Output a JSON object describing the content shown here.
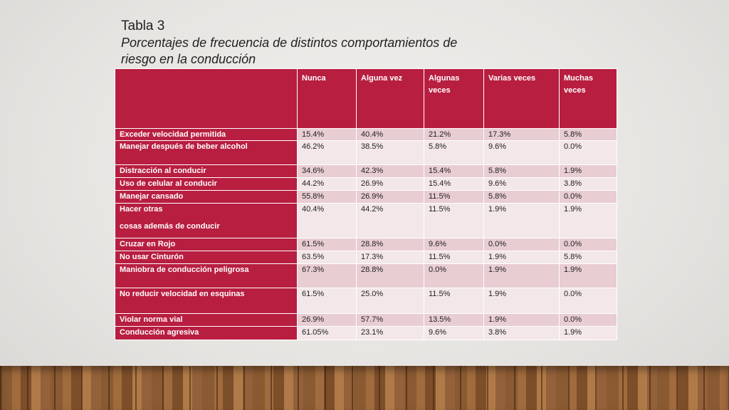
{
  "header": {
    "title": "Tabla 3",
    "subtitle": "Porcentajes de frecuencia de distintos comportamientos de riesgo en la conducción"
  },
  "table": {
    "columns": [
      "Nunca",
      "Alguna vez",
      "Algunas veces",
      "Varias veces",
      "Muchas veces"
    ],
    "rows": [
      {
        "label": "Exceder velocidad permitida",
        "values": [
          "15.4%",
          "40.4%",
          "21.2%",
          "17.3%",
          "5.8%"
        ]
      },
      {
        "label": "Manejar después  de beber alcohol",
        "values": [
          "46.2%",
          "38.5%",
          "5.8%",
          "9.6%",
          "0.0%"
        ]
      },
      {
        "label": "Distracción al conducir",
        "values": [
          "34.6%",
          "42.3%",
          "15.4%",
          "5.8%",
          "1.9%"
        ]
      },
      {
        "label": "Uso de celular al conducir",
        "values": [
          "44.2%",
          "26.9%",
          "15.4%",
          "9.6%",
          "3.8%"
        ]
      },
      {
        "label": "Manejar cansado",
        "values": [
          "55.8%",
          "26.9%",
          "11.5%",
          "5.8%",
          "0.0%"
        ]
      },
      {
        "label": "Hacer otras\n\ncosas además de conducir",
        "values": [
          "40.4%",
          "44.2%",
          "11.5%",
          "1.9%",
          "1.9%"
        ]
      },
      {
        "label": "Cruzar en Rojo",
        "values": [
          "61.5%",
          "28.8%",
          "9.6%",
          "0.0%",
          "0.0%"
        ]
      },
      {
        "label": "No usar Cinturón",
        "values": [
          "63.5%",
          "17.3%",
          "11.5%",
          "1.9%",
          "5.8%"
        ]
      },
      {
        "label": "Maniobra de conducción peligrosa",
        "values": [
          "67.3%",
          "28.8%",
          "0.0%",
          "1.9%",
          "1.9%"
        ]
      },
      {
        "label": "No reducir velocidad en esquinas",
        "values": [
          "61.5%",
          "25.0%",
          "11.5%",
          "1.9%",
          "0.0%"
        ]
      },
      {
        "label": "Violar norma vial",
        "values": [
          "26.9%",
          "57.7%",
          "13.5%",
          "1.9%",
          "0.0%"
        ]
      },
      {
        "label": "Conducción agresiva",
        "values": [
          "61.05%",
          "23.1%",
          "9.6%",
          "3.8%",
          "1.9%"
        ]
      }
    ]
  }
}
